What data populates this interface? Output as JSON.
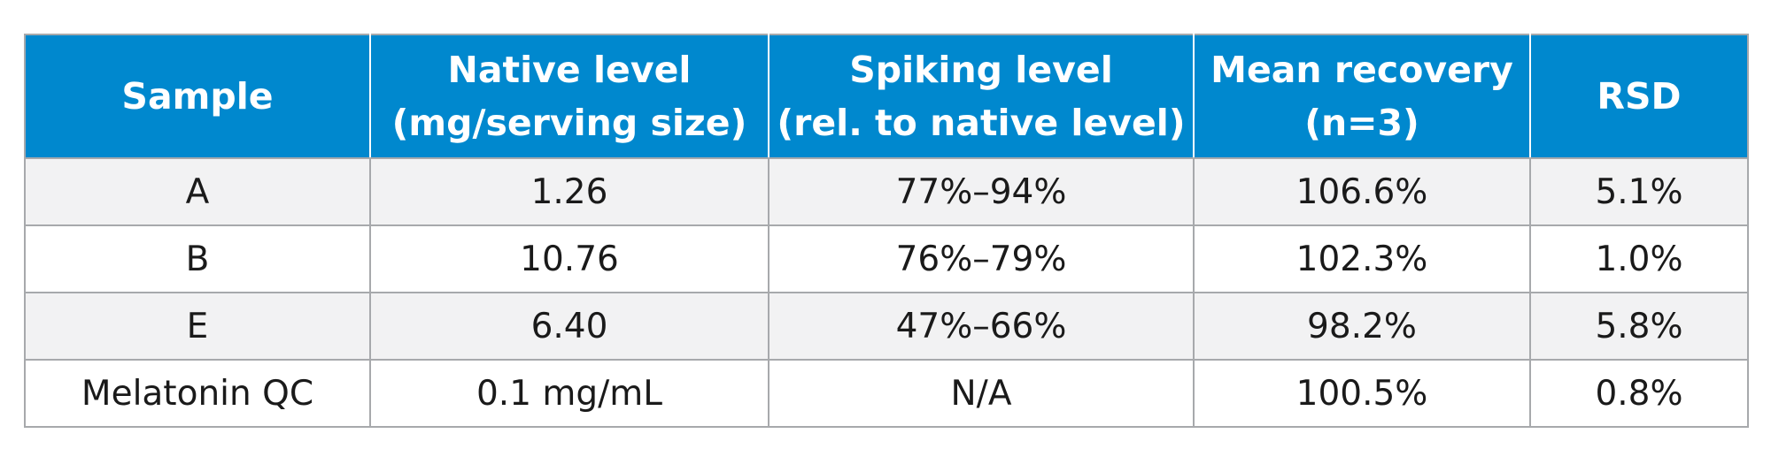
{
  "table": {
    "headers": [
      {
        "line1": "Sample",
        "line2": ""
      },
      {
        "line1": "Native level",
        "line2": "(mg/serving size)"
      },
      {
        "line1": "Spiking level",
        "line2": "(rel. to native level)"
      },
      {
        "line1": "Mean recovery",
        "line2": "(n=3)"
      },
      {
        "line1": "RSD",
        "line2": ""
      }
    ],
    "rows": [
      [
        "A",
        "1.26",
        "77%–94%",
        "106.6%",
        "5.1%"
      ],
      [
        "B",
        "10.76",
        "76%–79%",
        "102.3%",
        "1.0%"
      ],
      [
        "E",
        "6.40",
        "47%–66%",
        "98.2%",
        "5.8%"
      ],
      [
        "Melatonin QC",
        "0.1 mg/mL",
        "N/A",
        "100.5%",
        "0.8%"
      ]
    ]
  },
  "colors": {
    "header_bg": "#0088ce",
    "header_text": "#ffffff",
    "stripe_bg": "#f2f2f3",
    "border": "#a7a9ac"
  }
}
